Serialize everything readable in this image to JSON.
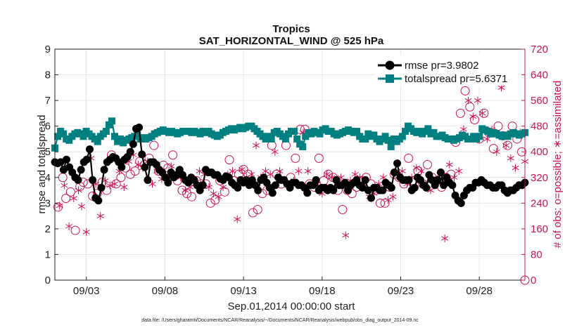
{
  "chart_data": {
    "type": "line",
    "title": "Tropics",
    "subtitle": "SAT_HORIZONTAL_WIND @ 525 hPa",
    "xlabel": "Sep.01,2014 00:00:00 start",
    "ylabel": "rmse and totalspread",
    "ylabel_right": "# of obs: o=possible; ∗=assimilated",
    "ylim": [
      0,
      9
    ],
    "ylim_right": [
      0,
      720
    ],
    "yticks": [
      "0",
      "1",
      "2",
      "3",
      "4",
      "5",
      "6",
      "7",
      "8",
      "9"
    ],
    "yticks_right": [
      "0",
      "80",
      "160",
      "240",
      "320",
      "400",
      "480",
      "560",
      "640",
      "720"
    ],
    "xlim": [
      1.0,
      30.9
    ],
    "xticks": [
      {
        "pos": 3,
        "label": "09/03"
      },
      {
        "pos": 8,
        "label": "09/08"
      },
      {
        "pos": 13,
        "label": "09/13"
      },
      {
        "pos": 18,
        "label": "09/18"
      },
      {
        "pos": 23,
        "label": "09/23"
      },
      {
        "pos": 28,
        "label": "09/28"
      }
    ],
    "grid": true,
    "legend_location": "top-right",
    "footer": "data file: /Users/gharamti/Documents/NCAR/Reanalysis/~/Documents/NCAR/Reanalysis/webpub/obs_diag_output_2014-09.nc",
    "colors": {
      "rmse": "#000000",
      "totalspread": "#008080",
      "obs": "#cc1155",
      "grid": "#e6e6e6"
    },
    "series": [
      {
        "name": "rmse",
        "legend": "rmse pr=3.9802",
        "marker": "circle",
        "values": [
          4.6,
          4.55,
          4.6,
          4.3,
          4.7,
          4.4,
          4.2,
          4.0,
          3.9,
          4.3,
          4.6,
          4.7,
          5.1,
          3.9,
          3.2,
          3.1,
          3.6,
          4.3,
          4.6,
          4.7,
          4.8,
          4.75,
          4.6,
          4.4,
          4.7,
          4.8,
          5.0,
          5.3,
          5.9,
          5.95,
          4.9,
          4.4,
          3.9,
          4.6,
          4.6,
          4.5,
          4.3,
          4.2,
          4.0,
          3.8,
          4.2,
          4.0,
          4.1,
          4.3,
          4.1,
          3.9,
          3.8,
          4.0,
          3.9,
          3.7,
          3.5,
          3.7,
          4.3,
          4.2,
          4.2,
          4.1,
          4.1,
          3.95,
          3.9,
          4.05,
          4.0,
          3.8,
          3.7,
          3.6,
          3.9,
          3.8,
          3.9,
          3.7,
          3.9,
          3.7,
          3.5,
          3.9,
          4.0,
          3.8,
          3.6,
          3.4,
          3.7,
          4.0,
          3.9,
          3.9,
          3.75,
          3.6,
          3.8,
          3.8,
          3.7,
          3.7,
          3.6,
          3.4,
          3.7,
          3.7,
          3.9,
          3.5,
          3.6,
          3.6,
          3.5,
          3.6,
          3.5,
          3.9,
          3.7,
          3.7,
          3.8,
          3.5,
          3.7,
          3.8,
          3.9,
          3.7,
          3.6,
          3.9,
          3.5,
          3.2,
          3.6,
          3.6,
          3.5,
          3.5,
          3.8,
          3.7,
          3.6,
          4.2,
          4.55,
          4.0,
          3.9,
          3.9,
          3.9,
          3.5,
          3.6,
          4.0,
          3.9,
          3.7,
          3.6,
          4.1,
          3.9,
          3.7,
          3.9,
          4.2,
          3.7,
          4.0,
          3.8,
          3.7,
          3.3,
          3.1,
          3.0,
          3.3,
          3.5,
          3.6,
          3.6,
          3.8,
          3.8,
          3.9,
          3.8,
          3.7,
          3.7,
          3.6,
          3.6,
          3.7,
          3.7,
          3.5,
          3.4,
          3.5,
          3.5,
          3.6,
          3.7,
          3.7,
          3.8
        ]
      },
      {
        "name": "totalspread",
        "legend": "totalspread pr=5.6371",
        "marker": "square",
        "values": [
          5.15,
          5.6,
          5.8,
          5.7,
          5.5,
          5.45,
          5.6,
          5.7,
          5.75,
          5.7,
          5.6,
          5.8,
          5.7,
          5.6,
          5.5,
          5.4,
          5.6,
          5.7,
          5.8,
          6.05,
          6.2,
          5.6,
          5.4,
          5.5,
          5.35,
          5.45,
          5.5,
          5.55,
          5.6,
          5.65,
          5.5,
          5.55,
          5.5,
          5.55,
          5.6,
          5.7,
          5.75,
          5.8,
          5.85,
          5.8,
          5.75,
          5.8,
          5.75,
          5.7,
          5.75,
          5.8,
          5.8,
          5.8,
          5.75,
          5.8,
          5.75,
          5.7,
          5.8,
          5.75,
          5.8,
          5.7,
          5.65,
          5.6,
          5.65,
          5.75,
          5.8,
          5.85,
          5.9,
          5.85,
          5.9,
          5.95,
          5.9,
          5.95,
          6.0,
          6.0,
          5.9,
          5.8,
          5.7,
          5.6,
          5.5,
          5.6,
          5.5,
          5.75,
          5.8,
          5.7,
          5.6,
          5.5,
          5.7,
          5.8,
          5.8,
          5.5,
          5.3,
          5.2,
          5.6,
          5.75,
          5.7,
          5.8,
          5.75,
          5.7,
          5.85,
          5.9,
          5.8,
          5.8,
          5.7,
          5.65,
          5.7,
          5.75,
          5.8,
          5.85,
          5.8,
          5.75,
          5.8,
          5.6,
          5.5,
          5.5,
          5.7,
          5.6,
          5.65,
          5.5,
          5.4,
          5.5,
          5.6,
          5.45,
          5.2,
          5.5,
          5.4,
          5.5,
          5.6,
          5.8,
          6.0,
          5.9,
          5.8,
          5.75,
          5.8,
          5.7,
          5.8,
          5.9,
          5.7,
          5.75,
          5.6,
          5.6,
          5.65,
          5.55,
          5.5,
          5.5,
          5.45,
          5.5,
          5.55,
          5.65,
          5.6,
          5.5,
          5.5,
          5.6,
          5.5,
          5.6,
          5.9,
          5.85,
          5.8,
          5.7,
          5.75,
          5.7,
          5.65,
          5.6,
          5.65,
          5.6,
          5.7,
          5.75,
          5.7,
          5.65,
          5.7,
          5.75
        ]
      },
      {
        "name": "possible",
        "marker": "circle-open",
        "axis": "right",
        "x": [
          1.2,
          1.5,
          1.7,
          2.0,
          2.3,
          2.6,
          2.8,
          3.1,
          3.4,
          3.7,
          4.0,
          4.3,
          4.6,
          4.9,
          5.2,
          5.5,
          5.8,
          6.1,
          6.4,
          6.7,
          7.0,
          7.3,
          7.6,
          7.9,
          8.2,
          8.5,
          8.8,
          9.1,
          9.4,
          9.7,
          10.0,
          10.3,
          10.6,
          10.9,
          11.2,
          11.5,
          11.8,
          12.1,
          12.4,
          12.7,
          13.0,
          13.3,
          13.6,
          13.9,
          14.2,
          14.5,
          14.8,
          15.1,
          15.4,
          15.7,
          16.0,
          16.3,
          16.6,
          16.9,
          17.2,
          17.5,
          17.8,
          18.1,
          18.4,
          18.7,
          19.0,
          19.3,
          19.6,
          19.9,
          20.2,
          20.5,
          20.8,
          21.1,
          21.4,
          21.7,
          22.0,
          22.3,
          22.6,
          22.9,
          23.2,
          23.5,
          23.8,
          24.1,
          24.4,
          24.7,
          25.0,
          25.3,
          25.6,
          25.9,
          26.2,
          26.5,
          26.8,
          27.1,
          27.4,
          27.7,
          28.0,
          28.3,
          28.6,
          28.9,
          29.2,
          29.5,
          29.8,
          30.1,
          30.4,
          30.7
        ],
        "values": [
          228,
          320,
          255,
          275,
          155,
          292,
          305,
          300,
          262,
          270,
          305,
          280,
          390,
          300,
          320,
          350,
          330,
          340,
          370,
          360,
          380,
          420,
          340,
          358,
          350,
          390,
          310,
          280,
          270,
          260,
          310,
          300,
          300,
          240,
          250,
          310,
          275,
          375,
          310,
          330,
          345,
          330,
          210,
          220,
          270,
          280,
          420,
          330,
          300,
          420,
          320,
          380,
          470,
          470,
          300,
          290,
          380,
          310,
          330,
          320,
          280,
          220,
          280,
          270,
          290,
          310,
          320,
          300,
          280,
          240,
          240,
          290,
          330,
          320,
          300,
          380,
          310,
          340,
          300,
          360,
          320,
          310,
          290,
          320,
          330,
          430,
          520,
          590,
          540,
          500,
          440,
          520,
          460,
          410,
          480,
          450,
          420,
          480,
          440,
          400
        ]
      },
      {
        "name": "assimilated",
        "marker": "asterisk",
        "axis": "right",
        "x": [
          1.3,
          1.6,
          1.9,
          2.2,
          2.5,
          2.7,
          3.0,
          3.3,
          3.6,
          3.9,
          4.2,
          4.5,
          4.8,
          5.1,
          5.4,
          5.7,
          6.0,
          6.3,
          6.6,
          6.9,
          7.2,
          7.5,
          7.8,
          8.1,
          8.4,
          8.7,
          9.0,
          9.3,
          9.6,
          9.9,
          10.2,
          10.5,
          10.8,
          11.1,
          11.4,
          11.7,
          12.0,
          12.3,
          12.6,
          12.9,
          13.2,
          13.5,
          13.8,
          14.1,
          14.4,
          14.7,
          15.0,
          15.3,
          15.6,
          15.9,
          16.2,
          16.5,
          16.8,
          17.1,
          17.4,
          17.7,
          18.0,
          18.3,
          18.6,
          18.9,
          19.2,
          19.5,
          19.8,
          20.1,
          20.4,
          20.7,
          21.0,
          21.3,
          21.6,
          21.9,
          22.2,
          22.5,
          22.8,
          23.1,
          23.4,
          23.7,
          24.0,
          24.3,
          24.6,
          24.9,
          25.2,
          25.5,
          25.8,
          26.1,
          26.4,
          26.7,
          27.0,
          27.3,
          27.6,
          27.9,
          28.2,
          28.5,
          28.8,
          29.1,
          29.4,
          29.7,
          30.0,
          30.3,
          30.6,
          30.9
        ],
        "values": [
          232,
          295,
          168,
          255,
          280,
          230,
          150,
          380,
          300,
          200,
          310,
          295,
          300,
          340,
          290,
          370,
          390,
          360,
          350,
          370,
          300,
          340,
          315,
          320,
          355,
          335,
          320,
          280,
          290,
          300,
          340,
          330,
          290,
          270,
          260,
          290,
          330,
          340,
          190,
          345,
          320,
          330,
          420,
          320,
          340,
          330,
          400,
          340,
          310,
          300,
          310,
          340,
          460,
          340,
          460,
          300,
          270,
          330,
          320,
          290,
          320,
          140,
          310,
          330,
          320,
          300,
          260,
          270,
          300,
          320,
          250,
          260,
          330,
          340,
          300,
          320,
          350,
          340,
          300,
          280,
          300,
          330,
          130,
          360,
          320,
          340,
          470,
          560,
          510,
          560,
          520,
          440,
          470,
          400,
          600,
          420,
          380,
          350,
          460,
          370
        ]
      }
    ]
  }
}
